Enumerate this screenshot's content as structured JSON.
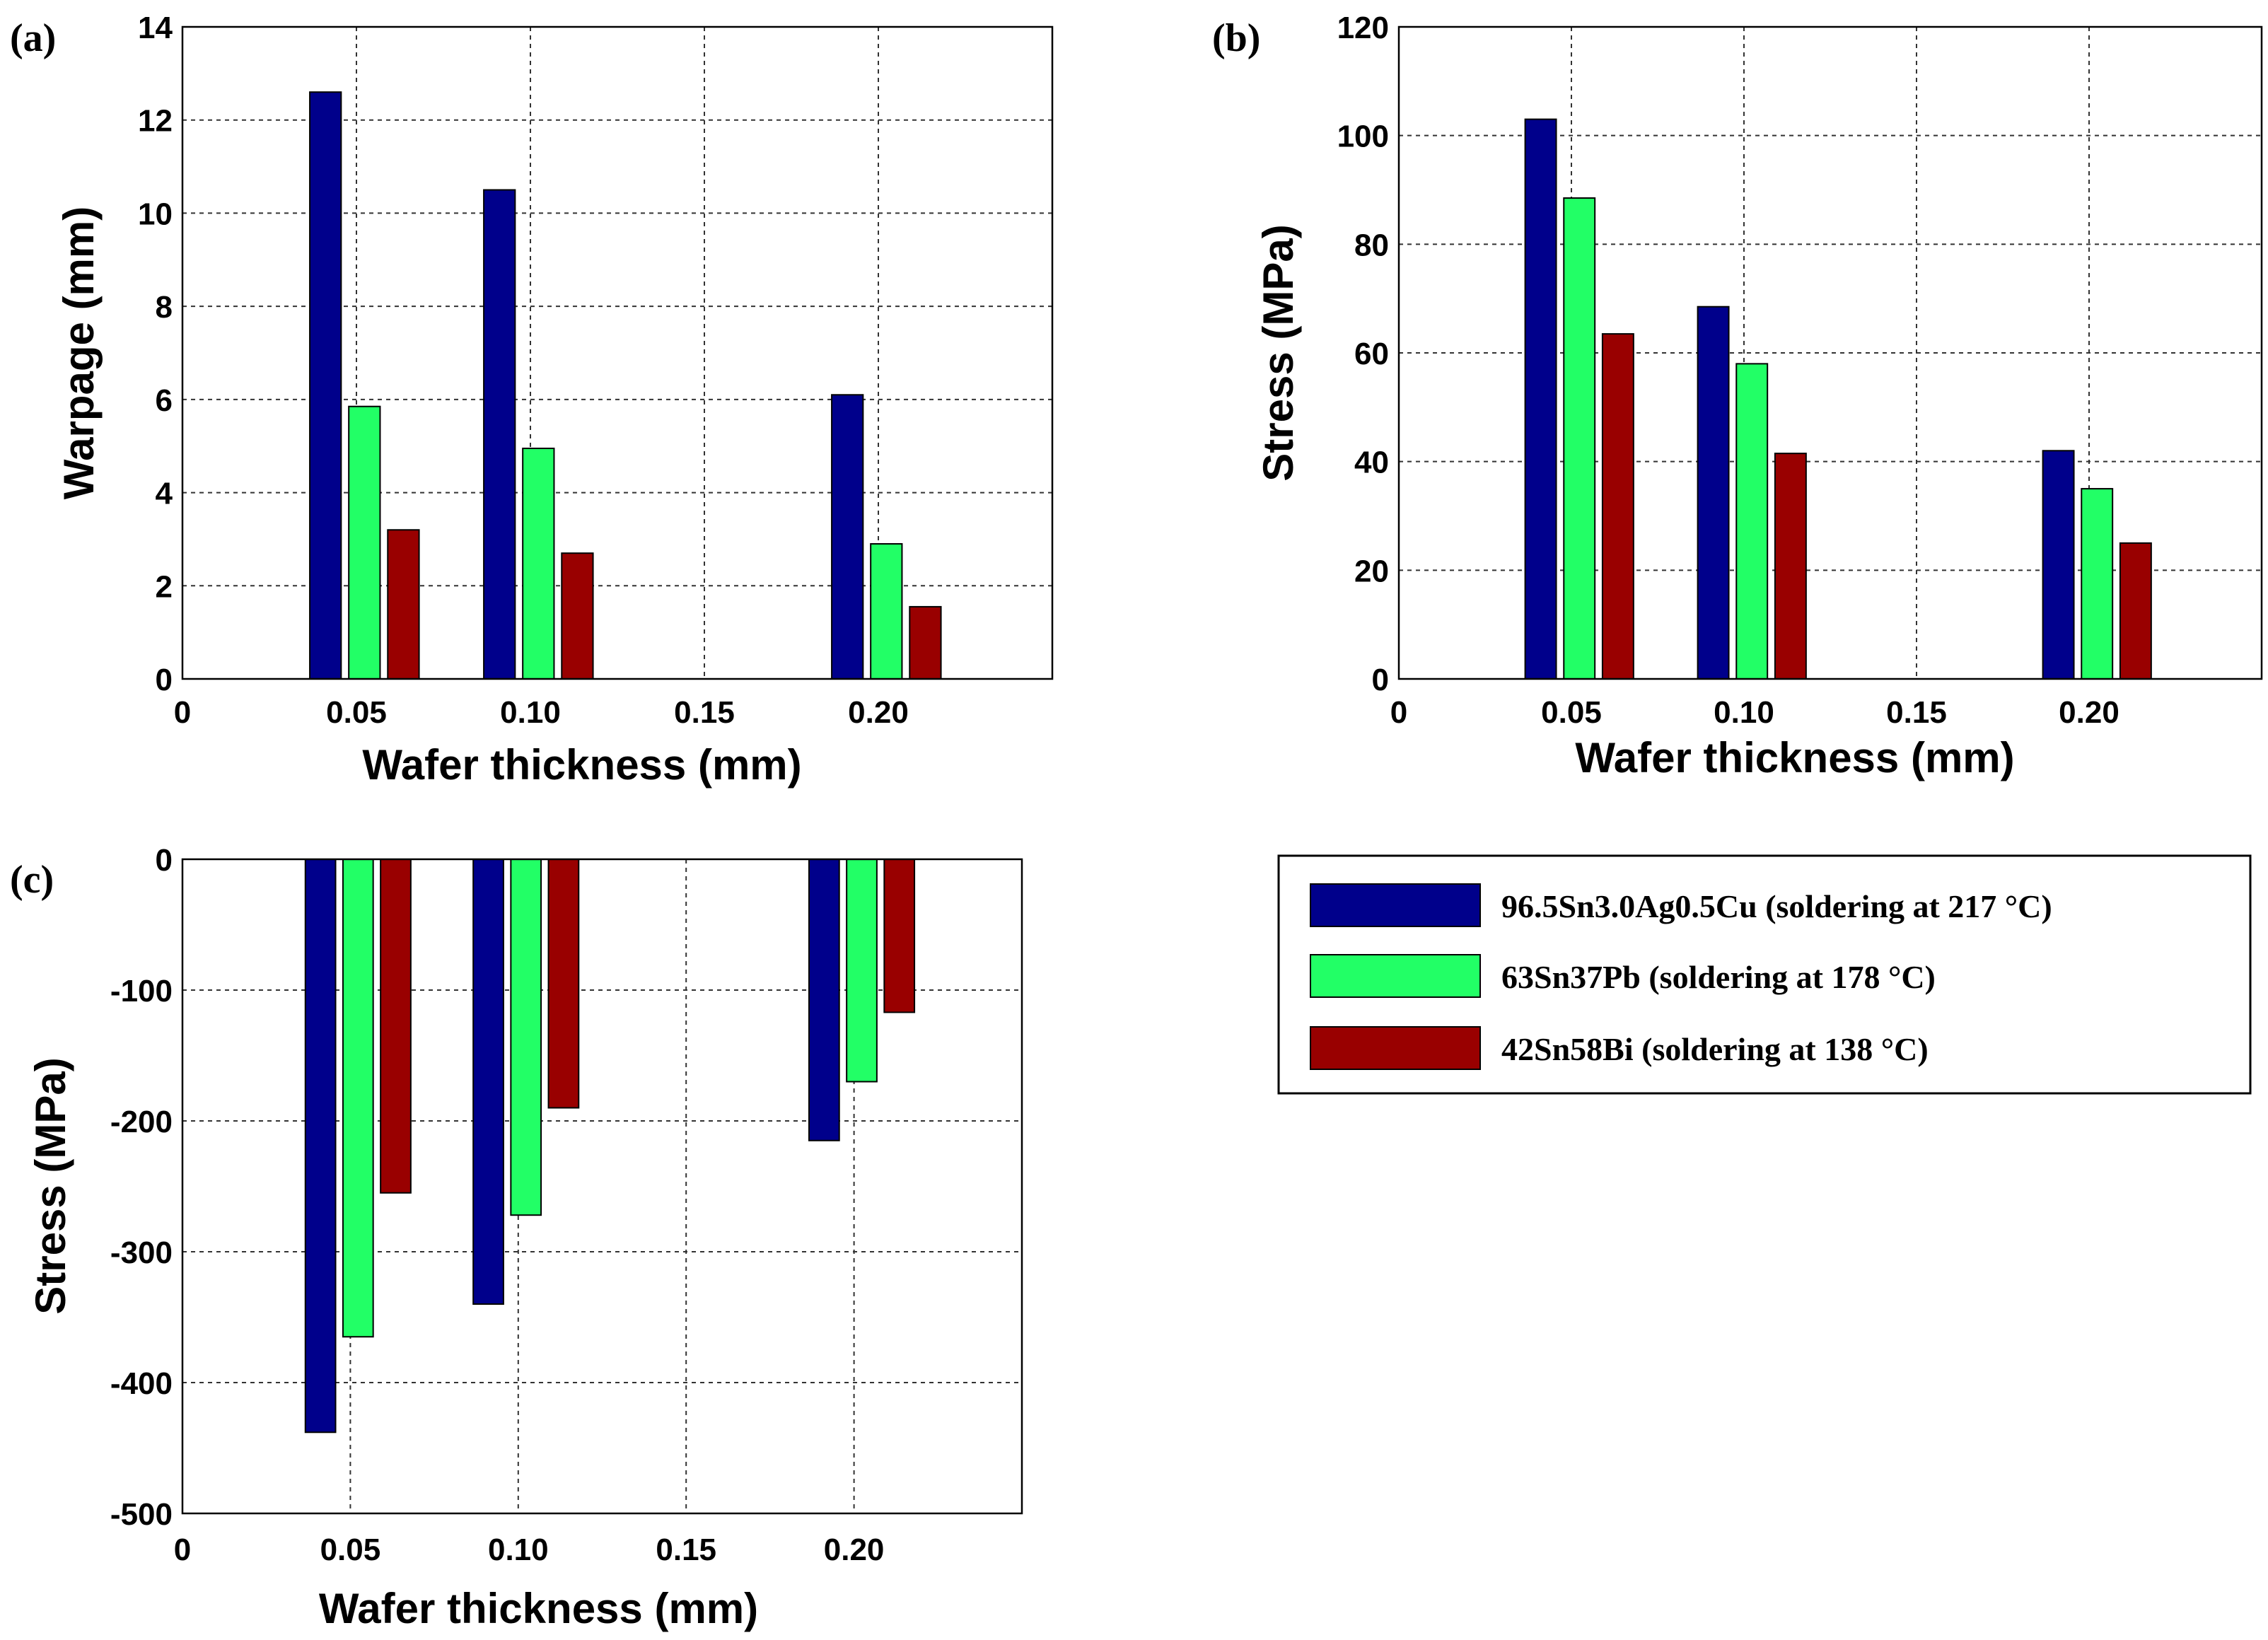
{
  "colors": {
    "sac": "#00008b",
    "snpb": "#22ff66",
    "snbi": "#990000"
  },
  "legend": {
    "entries": [
      {
        "label": "96.5Sn3.0Ag0.5Cu (soldering at 217 °C)",
        "color": "#00008b"
      },
      {
        "label": "63Sn37Pb (soldering at 178 °C)",
        "color": "#22ff66"
      },
      {
        "label": "42Sn58Bi  (soldering at 138 °C)",
        "color": "#990000"
      }
    ]
  },
  "chart_data": [
    {
      "panel": "(a)",
      "type": "bar",
      "categories": [
        "0.05",
        "0.10",
        "0.20"
      ],
      "category_x": [
        0.05,
        0.1,
        0.2
      ],
      "xlabel": "Wafer thickness (mm)",
      "ylabel": "Warpage (mm)",
      "xlim": [
        0,
        0.25
      ],
      "xticks": [
        0,
        0.05,
        0.1,
        0.15,
        0.2
      ],
      "xtick_labels": [
        "0",
        "0.05",
        "0.10",
        "0.15",
        "0.20"
      ],
      "ylim": [
        0,
        14
      ],
      "yticks": [
        0,
        2,
        4,
        6,
        8,
        10,
        12,
        14
      ],
      "ytick_labels": [
        "0",
        "2",
        "4",
        "6",
        "8",
        "10",
        "12",
        "14"
      ],
      "grid": true,
      "series": [
        {
          "name": "96.5Sn3.0Ag0.5Cu (soldering at 217 °C)",
          "values": [
            12.6,
            10.5,
            6.1
          ]
        },
        {
          "name": "63Sn37Pb (soldering at 178 °C)",
          "values": [
            5.85,
            4.95,
            2.9
          ]
        },
        {
          "name": "42Sn58Bi  (soldering at 138 °C)",
          "values": [
            3.2,
            2.7,
            1.55
          ]
        }
      ]
    },
    {
      "panel": "(b)",
      "type": "bar",
      "categories": [
        "0.05",
        "0.10",
        "0.20"
      ],
      "category_x": [
        0.05,
        0.1,
        0.2
      ],
      "xlabel": "Wafer thickness (mm)",
      "ylabel": "Stress (MPa)",
      "xlim": [
        0,
        0.25
      ],
      "xticks": [
        0,
        0.05,
        0.1,
        0.15,
        0.2
      ],
      "xtick_labels": [
        "0",
        "0.05",
        "0.10",
        "0.15",
        "0.20"
      ],
      "ylim": [
        0,
        120
      ],
      "yticks": [
        0,
        20,
        40,
        60,
        80,
        100,
        120
      ],
      "ytick_labels": [
        "0",
        "20",
        "40",
        "60",
        "80",
        "100",
        "120"
      ],
      "grid": true,
      "series": [
        {
          "name": "96.5Sn3.0Ag0.5Cu (soldering at 217 °C)",
          "values": [
            103,
            68.5,
            42
          ]
        },
        {
          "name": "63Sn37Pb (soldering at 178 °C)",
          "values": [
            88.5,
            58,
            35
          ]
        },
        {
          "name": "42Sn58Bi  (soldering at 138 °C)",
          "values": [
            63.5,
            41.5,
            25
          ]
        }
      ]
    },
    {
      "panel": "(c)",
      "type": "bar",
      "categories": [
        "0.05",
        "0.10",
        "0.20"
      ],
      "category_x": [
        0.05,
        0.1,
        0.2
      ],
      "xlabel": "Wafer thickness (mm)",
      "ylabel": "Stress (MPa)",
      "xlim": [
        0,
        0.25
      ],
      "xticks": [
        0,
        0.05,
        0.1,
        0.15,
        0.2
      ],
      "xtick_labels": [
        "0",
        "0.05",
        "0.10",
        "0.15",
        "0.20"
      ],
      "ylim": [
        -500,
        0
      ],
      "yticks": [
        0,
        -100,
        -200,
        -300,
        -400,
        -500
      ],
      "ytick_labels": [
        "0",
        "-100",
        "-200",
        "-300",
        "-400",
        "-500"
      ],
      "grid": true,
      "series": [
        {
          "name": "96.5Sn3.0Ag0.5Cu (soldering at 217 °C)",
          "values": [
            -438,
            -340,
            -215
          ]
        },
        {
          "name": "63Sn37Pb (soldering at 178 °C)",
          "values": [
            -365,
            -272,
            -170
          ]
        },
        {
          "name": "42Sn58Bi  (soldering at 138 °C)",
          "values": [
            -255,
            -190,
            -117
          ]
        }
      ]
    }
  ]
}
